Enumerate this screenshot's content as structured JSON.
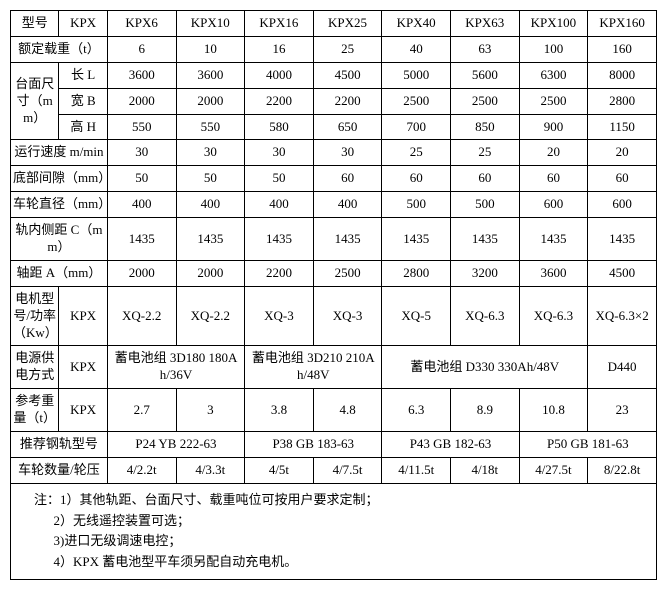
{
  "header": {
    "model": "型号",
    "sub": "KPX",
    "cols": [
      "KPX6",
      "KPX10",
      "KPX16",
      "KPX25",
      "KPX40",
      "KPX63",
      "KPX100",
      "KPX160"
    ]
  },
  "rows": {
    "rated_load": {
      "label": "额定载重（t）",
      "vals": [
        "6",
        "10",
        "16",
        "25",
        "40",
        "63",
        "100",
        "160"
      ]
    },
    "platform": {
      "group": "台面尺寸（mm）",
      "L": {
        "label": "长 L",
        "vals": [
          "3600",
          "3600",
          "4000",
          "4500",
          "5000",
          "5600",
          "6300",
          "8000"
        ]
      },
      "B": {
        "label": "宽 B",
        "vals": [
          "2000",
          "2000",
          "2200",
          "2200",
          "2500",
          "2500",
          "2500",
          "2800"
        ]
      },
      "H": {
        "label": "高 H",
        "vals": [
          "550",
          "550",
          "580",
          "650",
          "700",
          "850",
          "900",
          "1150"
        ]
      }
    },
    "speed": {
      "label": "运行速度 m/min",
      "vals": [
        "30",
        "30",
        "30",
        "30",
        "25",
        "25",
        "20",
        "20"
      ]
    },
    "bottom_gap": {
      "label": "底部间隙（mm）",
      "vals": [
        "50",
        "50",
        "50",
        "60",
        "60",
        "60",
        "60",
        "60"
      ]
    },
    "wheel_dia": {
      "label": "车轮直径（mm）",
      "vals": [
        "400",
        "400",
        "400",
        "400",
        "500",
        "500",
        "600",
        "600"
      ]
    },
    "rail_inner": {
      "label": "轨内侧距 C（mm）",
      "vals": [
        "1435",
        "1435",
        "1435",
        "1435",
        "1435",
        "1435",
        "1435",
        "1435"
      ]
    },
    "wheelbase": {
      "label": "轴距 A（mm）",
      "vals": [
        "2000",
        "2000",
        "2200",
        "2500",
        "2800",
        "3200",
        "3600",
        "4500"
      ]
    },
    "motor": {
      "label": "电机型号/功率（Kw）",
      "sub": "KPX",
      "vals": [
        "XQ-2.2",
        "XQ-2.2",
        "XQ-3",
        "XQ-3",
        "XQ-5",
        "XQ-6.3",
        "XQ-6.3",
        "XQ-6.3×2"
      ]
    },
    "power": {
      "label": "电源供电方式",
      "sub": "KPX",
      "g1": "蓄电池组 3D180 180Ah/36V",
      "g2": "蓄电池组 3D210 210Ah/48V",
      "g3": "蓄电池组 D330 330Ah/48V",
      "g4": "D440"
    },
    "ref_weight": {
      "label": "参考重量（t）",
      "sub": "KPX",
      "vals": [
        "2.7",
        "3",
        "3.8",
        "4.8",
        "6.3",
        "8.9",
        "10.8",
        "23"
      ]
    },
    "rail_rec": {
      "label": "推荐钢轨型号",
      "g1": "P24 YB 222-63",
      "g2": "P38 GB 183-63",
      "g3": "P43 GB 182-63",
      "g4": "P50 GB 181-63"
    },
    "wheel_qty": {
      "label": "车轮数量/轮压",
      "vals": [
        "4/2.2t",
        "4/3.3t",
        "4/5t",
        "4/7.5t",
        "4/11.5t",
        "4/18t",
        "4/27.5t",
        "8/22.8t"
      ]
    }
  },
  "notes": {
    "prefix": "注：",
    "n1": "1）其他轨距、台面尺寸、载重吨位可按用户要求定制；",
    "n2": "2）无线遥控装置可选；",
    "n3": "3)进口无级调速电控；",
    "n4": "4）KPX 蓄电池型平车须另配自动充电机。"
  }
}
